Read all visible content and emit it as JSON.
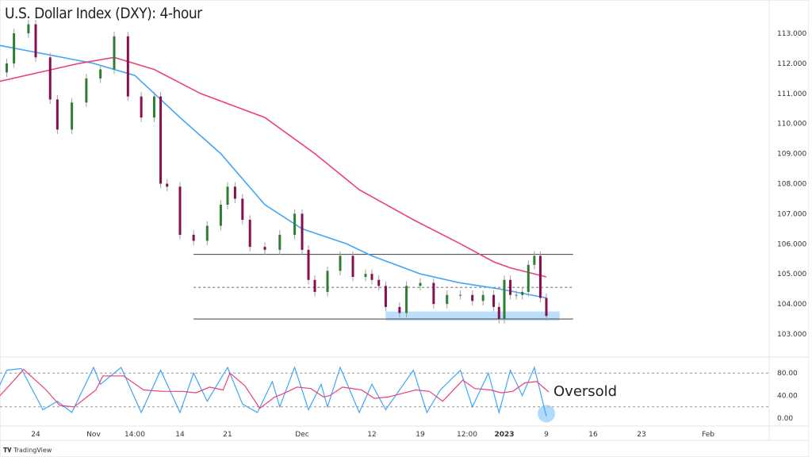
{
  "chart_data": {
    "type": "candlestick",
    "title": "U.S. Dollar Index (DXY): 4-hour",
    "ylim": [
      102.5,
      113.6
    ],
    "yticks": [
      "113.000",
      "112.000",
      "111.000",
      "110.000",
      "109.000",
      "108.000",
      "107.000",
      "106.000",
      "105.000",
      "104.000",
      "103.000"
    ],
    "xticks": [
      {
        "label": "24",
        "date": "2022-10-24"
      },
      {
        "label": "Nov",
        "date": "2022-11-01"
      },
      {
        "label": "14:00",
        "date": "2022-11-07"
      },
      {
        "label": "14",
        "date": "2022-11-14"
      },
      {
        "label": "21",
        "date": "2022-11-21"
      },
      {
        "label": "Dec",
        "date": "2022-12-01"
      },
      {
        "label": "12",
        "date": "2022-12-12"
      },
      {
        "label": "19",
        "date": "2022-12-19"
      },
      {
        "label": "12:00",
        "date": "2022-12-26"
      },
      {
        "label": "2023",
        "date": "2023-01-02",
        "bold": true
      },
      {
        "label": "9",
        "date": "2023-01-09"
      },
      {
        "label": "16",
        "date": "2023-01-16"
      },
      {
        "label": "23",
        "date": "2023-01-23"
      },
      {
        "label": "Feb",
        "date": "2023-02-01"
      }
    ],
    "colors": {
      "up": "#2e7d32",
      "down": "#880e4f",
      "wick": "#9e9e9e",
      "ma_fast": "#42a5f5",
      "ma_slow": "#ec407a",
      "zone": "#90caf9",
      "level": "#555555"
    },
    "close": [
      [
        "2022-10-20",
        112.0
      ],
      [
        "2022-10-21",
        113.0
      ],
      [
        "2022-10-23",
        113.3
      ],
      [
        "2022-10-24",
        112.2
      ],
      [
        "2022-10-26",
        110.8
      ],
      [
        "2022-10-27",
        109.8
      ],
      [
        "2022-10-29",
        110.7
      ],
      [
        "2022-10-31",
        111.5
      ],
      [
        "2022-11-02",
        111.8
      ],
      [
        "2022-11-04",
        112.9
      ],
      [
        "2022-11-06",
        110.9
      ],
      [
        "2022-11-08",
        110.2
      ],
      [
        "2022-11-10",
        110.9
      ],
      [
        "2022-11-11",
        108.0
      ],
      [
        "2022-11-12",
        107.9
      ],
      [
        "2022-11-14",
        106.3
      ],
      [
        "2022-11-16",
        106.1
      ],
      [
        "2022-11-18",
        106.6
      ],
      [
        "2022-11-20",
        107.3
      ],
      [
        "2022-11-21",
        107.9
      ],
      [
        "2022-11-22",
        107.5
      ],
      [
        "2022-11-23",
        106.8
      ],
      [
        "2022-11-24",
        105.9
      ],
      [
        "2022-11-26",
        105.8
      ],
      [
        "2022-11-28",
        106.3
      ],
      [
        "2022-11-30",
        107.0
      ],
      [
        "2022-12-01",
        105.8
      ],
      [
        "2022-12-02",
        104.8
      ],
      [
        "2022-12-03",
        104.4
      ],
      [
        "2022-12-05",
        105.1
      ],
      [
        "2022-12-07",
        105.6
      ],
      [
        "2022-12-09",
        104.9
      ],
      [
        "2022-12-11",
        105.0
      ],
      [
        "2022-12-12",
        104.8
      ],
      [
        "2022-12-13",
        104.6
      ],
      [
        "2022-12-14",
        103.9
      ],
      [
        "2022-12-16",
        103.7
      ],
      [
        "2022-12-17",
        104.6
      ],
      [
        "2022-12-19",
        104.7
      ],
      [
        "2022-12-21",
        104.0
      ],
      [
        "2022-12-23",
        104.3
      ],
      [
        "2022-12-25",
        104.3
      ],
      [
        "2022-12-27",
        104.1
      ],
      [
        "2022-12-29",
        104.3
      ],
      [
        "2022-12-31",
        103.9
      ],
      [
        "2023-01-01",
        103.5
      ],
      [
        "2023-01-02",
        104.8
      ],
      [
        "2023-01-03",
        104.3
      ],
      [
        "2023-01-04",
        104.3
      ],
      [
        "2023-01-05",
        104.4
      ],
      [
        "2023-01-06",
        105.3
      ],
      [
        "2023-01-07",
        105.6
      ],
      [
        "2023-01-08",
        104.2
      ],
      [
        "2023-01-09",
        103.6
      ]
    ],
    "ma_fast": [
      [
        "2022-10-19",
        112.6
      ],
      [
        "2022-11-01",
        112.0
      ],
      [
        "2022-11-07",
        111.6
      ],
      [
        "2022-11-14",
        110.2
      ],
      [
        "2022-11-20",
        109.0
      ],
      [
        "2022-11-26",
        107.3
      ],
      [
        "2022-12-01",
        106.5
      ],
      [
        "2022-12-08",
        106.0
      ],
      [
        "2022-12-12",
        105.6
      ],
      [
        "2022-12-19",
        105.0
      ],
      [
        "2022-12-25",
        104.7
      ],
      [
        "2023-01-01",
        104.5
      ],
      [
        "2023-01-09",
        104.2
      ]
    ],
    "ma_slow": [
      [
        "2022-10-19",
        111.4
      ],
      [
        "2022-10-30",
        112.0
      ],
      [
        "2022-11-04",
        112.2
      ],
      [
        "2022-11-10",
        111.8
      ],
      [
        "2022-11-17",
        111.0
      ],
      [
        "2022-11-26",
        110.2
      ],
      [
        "2022-12-03",
        109.0
      ],
      [
        "2022-12-10",
        107.8
      ],
      [
        "2022-12-18",
        106.8
      ],
      [
        "2022-12-25",
        106.0
      ],
      [
        "2022-12-31",
        105.4
      ],
      [
        "2023-01-03",
        105.2
      ],
      [
        "2023-01-09",
        104.9
      ]
    ],
    "levels": [
      {
        "value": 105.65,
        "style": "solid",
        "from": "2022-11-16",
        "to": "2023-01-13"
      },
      {
        "value": 104.55,
        "style": "dashed",
        "from": "2022-11-16",
        "to": "2023-01-13"
      },
      {
        "value": 103.5,
        "style": "solid",
        "from": "2022-11-16",
        "to": "2023-01-13"
      }
    ],
    "support_zone": {
      "low": 103.45,
      "high": 103.75,
      "from": "2022-12-14",
      "to": "2023-01-11"
    },
    "stochastic": {
      "ylim": [
        0,
        100
      ],
      "yticks": [
        "80.00",
        "40.00",
        "0.00"
      ],
      "bands": [
        80,
        20
      ],
      "k": [
        [
          "2022-10-18",
          30
        ],
        [
          "2022-10-20",
          85
        ],
        [
          "2022-10-22",
          88
        ],
        [
          "2022-10-25",
          15
        ],
        [
          "2022-10-27",
          30
        ],
        [
          "2022-10-29",
          10
        ],
        [
          "2022-11-01",
          90
        ],
        [
          "2022-11-02",
          60
        ],
        [
          "2022-11-05",
          90
        ],
        [
          "2022-11-08",
          10
        ],
        [
          "2022-11-11",
          85
        ],
        [
          "2022-11-14",
          10
        ],
        [
          "2022-11-16",
          80
        ],
        [
          "2022-11-18",
          30
        ],
        [
          "2022-11-20",
          70
        ],
        [
          "2022-11-21",
          90
        ],
        [
          "2022-11-23",
          25
        ],
        [
          "2022-11-25",
          10
        ],
        [
          "2022-11-27",
          65
        ],
        [
          "2022-11-28",
          20
        ],
        [
          "2022-11-30",
          90
        ],
        [
          "2022-12-02",
          15
        ],
        [
          "2022-12-04",
          60
        ],
        [
          "2022-12-05",
          20
        ],
        [
          "2022-12-07",
          90
        ],
        [
          "2022-12-10",
          10
        ],
        [
          "2022-12-12",
          60
        ],
        [
          "2022-12-14",
          15
        ],
        [
          "2022-12-18",
          85
        ],
        [
          "2022-12-20",
          10
        ],
        [
          "2022-12-22",
          50
        ],
        [
          "2022-12-25",
          85
        ],
        [
          "2022-12-27",
          20
        ],
        [
          "2022-12-30",
          80
        ],
        [
          "2023-01-01",
          10
        ],
        [
          "2023-01-03",
          85
        ],
        [
          "2023-01-05",
          40
        ],
        [
          "2023-01-07",
          90
        ],
        [
          "2023-01-09",
          3
        ]
      ],
      "colors": {
        "k": "#42a5f5",
        "d": "#ec407a"
      }
    },
    "annotation": {
      "text": "Oversold",
      "date": "2023-01-09",
      "value": 8
    }
  },
  "footer": {
    "brand": "TradingView"
  }
}
